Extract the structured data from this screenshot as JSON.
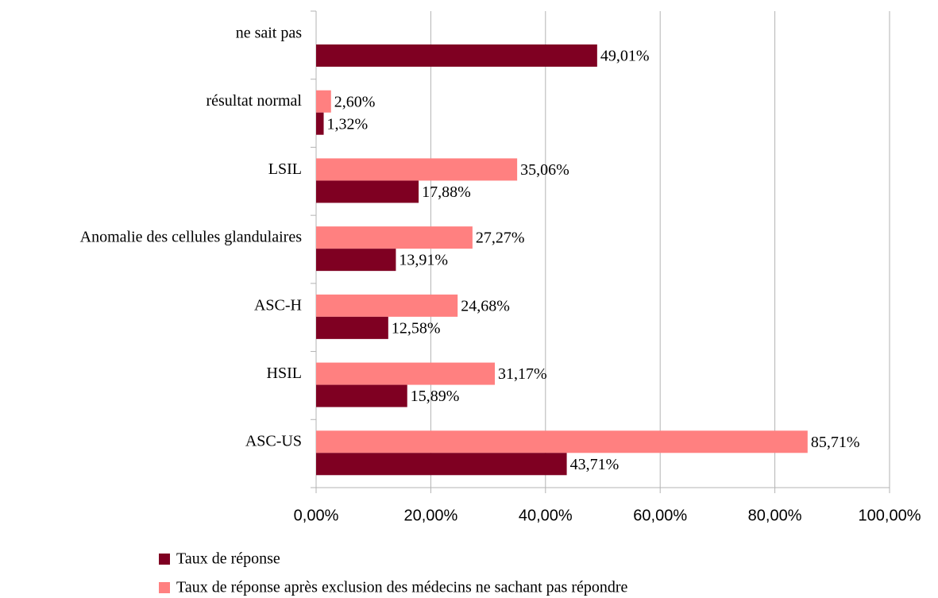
{
  "chart_data": {
    "type": "bar",
    "orientation": "horizontal",
    "categories": [
      "ne sait pas",
      "résultat normal",
      "LSIL",
      "Anomalie des cellules glandulaires",
      "ASC-H",
      "HSIL",
      "ASC-US"
    ],
    "series": [
      {
        "name": "Taux de réponse après exclusion des médecins ne sachant pas répondre",
        "color": "#ff8080",
        "values": [
          null,
          2.6,
          35.06,
          27.27,
          24.68,
          31.17,
          85.71
        ],
        "value_labels": [
          null,
          "2,60%",
          "35,06%",
          "27,27%",
          "24,68%",
          "31,17%",
          "85,71%"
        ]
      },
      {
        "name": "Taux de réponse",
        "color": "#7f0022",
        "values": [
          49.01,
          1.32,
          17.88,
          13.91,
          12.58,
          15.89,
          43.71
        ],
        "value_labels": [
          "49,01%",
          "1,32%",
          "17,88%",
          "13,91%",
          "12,58%",
          "15,89%",
          "43,71%"
        ]
      }
    ],
    "xlim": [
      0,
      100
    ],
    "xticks": [
      {
        "value": 0,
        "label": "0,00%"
      },
      {
        "value": 20,
        "label": "20,00%"
      },
      {
        "value": 40,
        "label": "40,00%"
      },
      {
        "value": 60,
        "label": "60,00%"
      },
      {
        "value": 80,
        "label": "80,00%"
      },
      {
        "value": 100,
        "label": "100,00%"
      }
    ],
    "grid": true,
    "legend": "bottom"
  }
}
